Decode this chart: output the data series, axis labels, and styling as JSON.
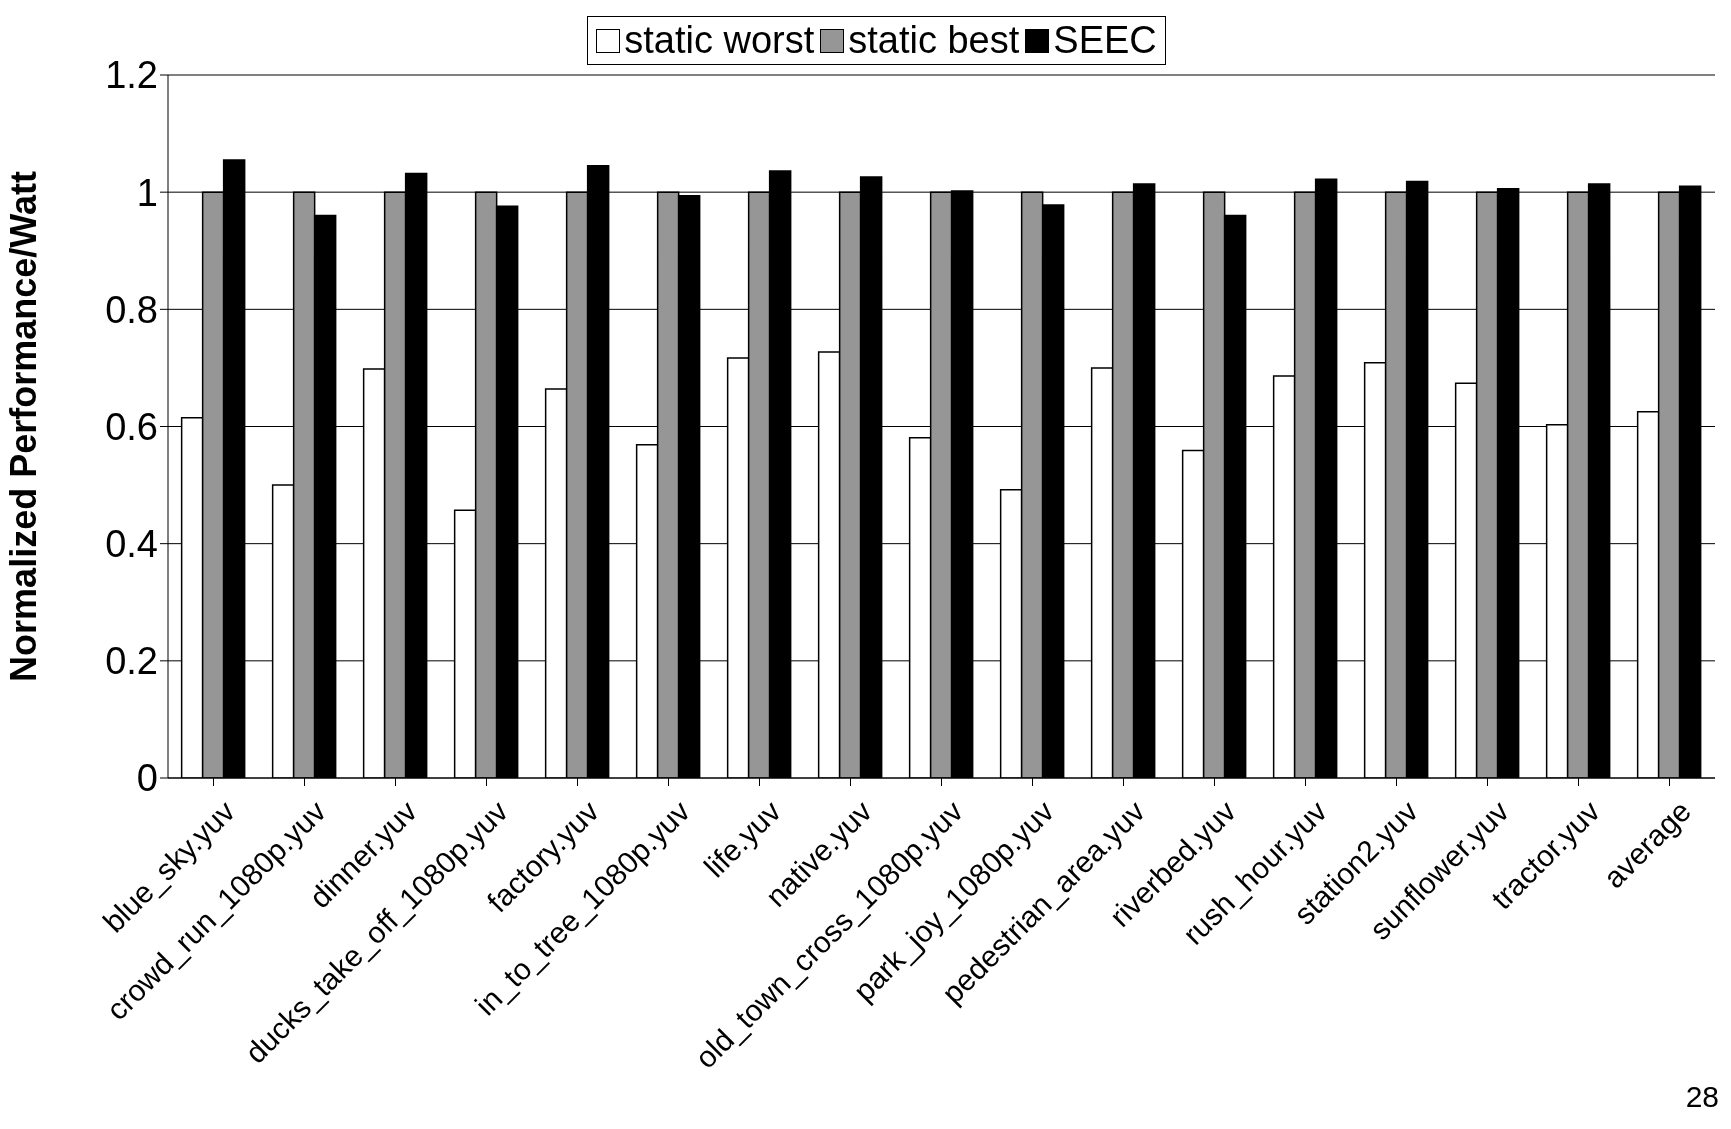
{
  "chart_data": {
    "type": "bar",
    "ylabel": "Normalized Performance/Watt",
    "categories": [
      "blue_sky.yuv",
      "crowd_run_1080p.yuv",
      "dinner.yuv",
      "ducks_take_off_1080p.yuv",
      "factory.yuv",
      "in_to_tree_1080p.yuv",
      "life.yuv",
      "native.yuv",
      "old_town_cross_1080p.yuv",
      "park_joy_1080p.yuv",
      "pedestrian_area.yuv",
      "riverbed.yuv",
      "rush_hour.yuv",
      "station2.yuv",
      "sunflower.yuv",
      "tractor.yuv",
      "average"
    ],
    "series": [
      {
        "name": "static worst",
        "color": "#ffffff",
        "values": [
          0.615,
          0.5,
          0.698,
          0.457,
          0.664,
          0.569,
          0.717,
          0.727,
          0.581,
          0.492,
          0.7,
          0.559,
          0.686,
          0.709,
          0.674,
          0.603,
          0.625
        ]
      },
      {
        "name": "static best",
        "color": "#969696",
        "values": [
          1,
          1,
          1,
          1,
          1,
          1,
          1,
          1,
          1,
          1,
          1,
          1,
          1,
          1,
          1,
          1,
          1
        ]
      },
      {
        "name": "SEEC",
        "color": "#000000",
        "values": [
          1.055,
          0.96,
          1.032,
          0.976,
          1.045,
          0.994,
          1.036,
          1.026,
          1.002,
          0.978,
          1.014,
          0.96,
          1.022,
          1.018,
          1.006,
          1.014,
          1.01
        ]
      }
    ],
    "ylim": [
      0,
      1.2
    ],
    "yticks": [
      0,
      0.2,
      0.4,
      0.6,
      0.8,
      1,
      1.2
    ],
    "grid": "y",
    "legend": "top",
    "annotations": [
      "28"
    ]
  }
}
